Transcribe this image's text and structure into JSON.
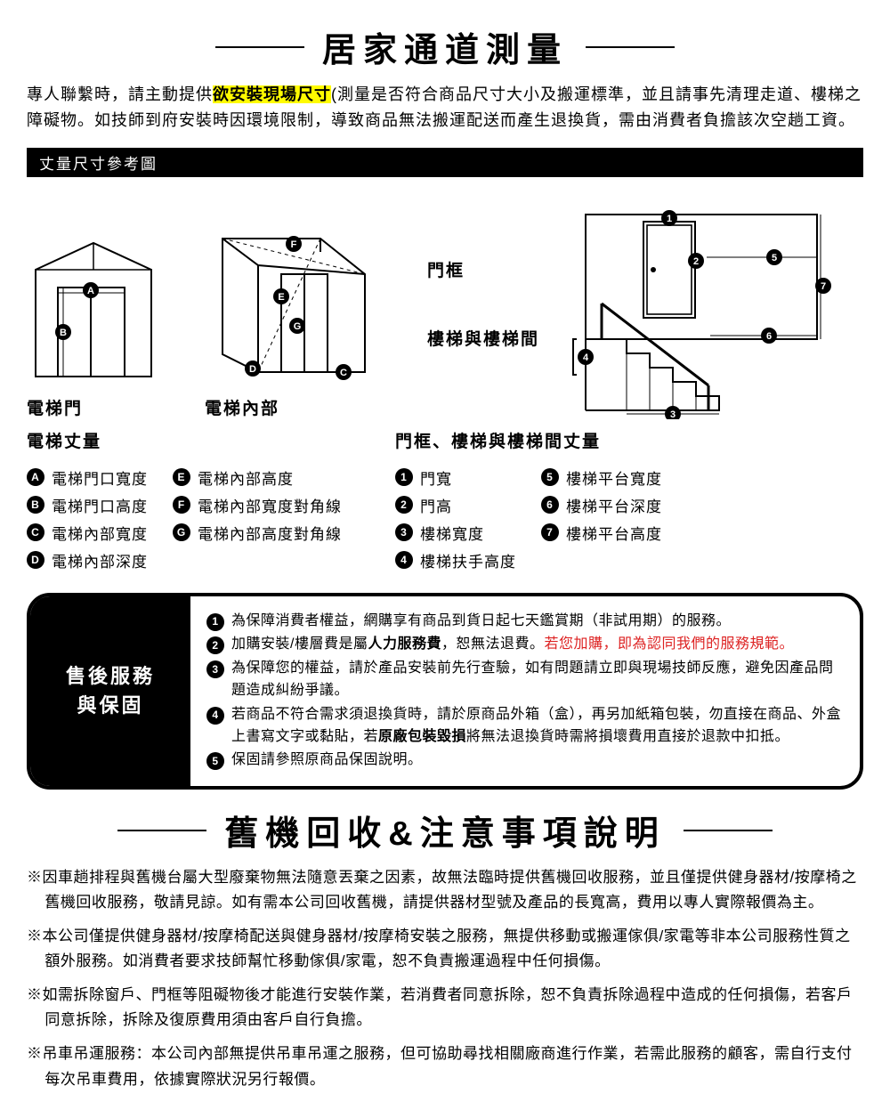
{
  "title1": "居家通道測量",
  "intro_pre": "專人聯繫時，請主動提供",
  "intro_hl": "欲安裝現場尺寸",
  "intro_post": "(測量是否符合商品尺寸大小及搬運標準，並且請事先清理走道、樓梯之障礙物。如技師到府安裝時因環境限制，導致商品無法搬運配送而產生退換貨，需由消費者負擔該次空趟工資。",
  "bar": "丈量尺寸參考圖",
  "cap_elev_door": "電梯門",
  "cap_elev_inside": "電梯內部",
  "label_door_frame": "門框",
  "label_stairs": "樓梯與樓梯間",
  "legendA_title": "電梯丈量",
  "legendB_title": "門框、樓梯與樓梯間丈量",
  "elevA": [
    {
      "k": "A",
      "t": "電梯門口寬度"
    },
    {
      "k": "B",
      "t": "電梯門口高度"
    },
    {
      "k": "C",
      "t": "電梯內部寬度"
    },
    {
      "k": "D",
      "t": "電梯內部深度"
    }
  ],
  "elevB": [
    {
      "k": "E",
      "t": "電梯內部高度"
    },
    {
      "k": "F",
      "t": "電梯內部寬度對角線"
    },
    {
      "k": "G",
      "t": "電梯內部高度對角線"
    }
  ],
  "stairA": [
    {
      "k": "1",
      "t": "門寬"
    },
    {
      "k": "2",
      "t": "門高"
    },
    {
      "k": "3",
      "t": "樓梯寬度"
    },
    {
      "k": "4",
      "t": "樓梯扶手高度"
    }
  ],
  "stairB": [
    {
      "k": "5",
      "t": "樓梯平台寬度"
    },
    {
      "k": "6",
      "t": "樓梯平台深度"
    },
    {
      "k": "7",
      "t": "樓梯平台高度"
    }
  ],
  "service_title": "售後服務\n與保固",
  "svc": [
    {
      "n": "1",
      "html": "為保障消費者權益，網購享有商品到貨日起七天鑑賞期（非試用期）的服務。"
    },
    {
      "n": "2",
      "html": "加購安裝/樓層費是屬<b>人力服務費</b>，恕無法退費。<span class='red'>若您加購，即為認同我們的服務規範。</span>"
    },
    {
      "n": "3",
      "html": "為保障您的權益，請於產品安裝前先行查驗，如有問題請立即與現場技師反應，避免因產品問題造成糾紛爭議。"
    },
    {
      "n": "4",
      "html": "若商品不符合需求須退換貨時，請於原商品外箱（盒），再另加紙箱包裝，勿直接在商品、外盒上書寫文字或黏貼，若<b>原廠包裝毀損</b>將無法退換貨時需將損壞費用直接於退款中扣抵。"
    },
    {
      "n": "5",
      "html": "保固請參照原商品保固說明。"
    }
  ],
  "title2": "舊機回收&注意事項說明",
  "notes": [
    "※因車趟排程與舊機台屬大型廢棄物無法隨意丟棄之因素，故無法臨時提供舊機回收服務，並且僅提供健身器材/按摩椅之舊機回收服務，敬請見諒。如有需本公司回收舊機，請提供器材型號及產品的長寬高，費用以專人實際報價為主。",
    "※本公司僅提供健身器材/按摩椅配送與健身器材/按摩椅安裝之服務，無提供移動或搬運傢俱/家電等非本公司服務性質之額外服務。如消費者要求技師幫忙移動傢俱/家電，恕不負責搬運過程中任何損傷。",
    "※如需拆除窗戶、門框等阻礙物後才能進行安裝作業，若消費者同意拆除，恕不負責拆除過程中造成的任何損傷，若客戶同意拆除，拆除及復原費用須由客戶自行負擔。",
    "※吊車吊運服務：本公司內部無提供吊車吊運之服務，但可協助尋找相關廠商進行作業，若需此服務的顧客，需自行支付每次吊車費用，依據實際狀況另行報價。"
  ],
  "colors": {
    "dot": "#000",
    "highlight": "#fffb00",
    "red": "#d22"
  }
}
